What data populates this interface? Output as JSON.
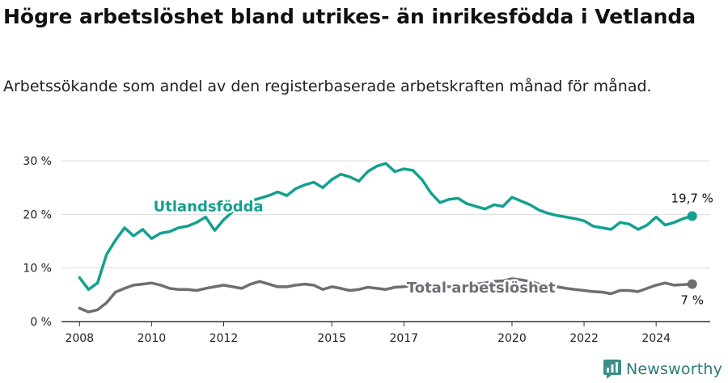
{
  "title": "Högre arbetslöshet bland utrikes- än inrikesfödda i Vetlanda",
  "subtitle": "Arbetssökande som andel av den registerbaserade arbetskraften månad för månad.",
  "brand": {
    "name": "Newsworthy",
    "icon": "newsworthy-logo-icon",
    "color": "#3a8f88"
  },
  "colors": {
    "foreign_born": "#13a091",
    "total": "#6e6e73",
    "grid": "#dcdcdc",
    "axis": "#333333"
  },
  "chart_data": {
    "type": "line",
    "xlabel": "",
    "ylabel": "",
    "xlim": [
      2007.5,
      2025.5
    ],
    "ylim": [
      0,
      30
    ],
    "x_ticks": [
      2008,
      2010,
      2012,
      2015,
      2017,
      2020,
      2022,
      2024
    ],
    "x_tick_labels": [
      "2008",
      "2010",
      "2012",
      "2015",
      "2017",
      "2020",
      "2022",
      "2024"
    ],
    "y_ticks": [
      0,
      10,
      20,
      30
    ],
    "y_tick_labels": [
      "0 %",
      "10 %",
      "20 %",
      "30 %"
    ],
    "grid": "horizontal",
    "legend": "inline",
    "series": [
      {
        "name": "Utlandsfödda",
        "end_label": "19,7 %",
        "x": [
          2008.0,
          2008.25,
          2008.5,
          2008.75,
          2009.0,
          2009.25,
          2009.5,
          2009.75,
          2010.0,
          2010.25,
          2010.5,
          2010.75,
          2011.0,
          2011.25,
          2011.5,
          2011.75,
          2012.0,
          2012.25,
          2012.5,
          2012.75,
          2013.0,
          2013.25,
          2013.5,
          2013.75,
          2014.0,
          2014.25,
          2014.5,
          2014.75,
          2015.0,
          2015.25,
          2015.5,
          2015.75,
          2016.0,
          2016.25,
          2016.5,
          2016.75,
          2017.0,
          2017.25,
          2017.5,
          2017.75,
          2018.0,
          2018.25,
          2018.5,
          2018.75,
          2019.0,
          2019.25,
          2019.5,
          2019.75,
          2020.0,
          2020.25,
          2020.5,
          2020.75,
          2021.0,
          2021.25,
          2021.5,
          2021.75,
          2022.0,
          2022.25,
          2022.5,
          2022.75,
          2023.0,
          2023.25,
          2023.5,
          2023.75,
          2024.0,
          2024.25,
          2024.5,
          2024.75,
          2025.0
        ],
        "y": [
          8.2,
          6.0,
          7.2,
          12.5,
          15.2,
          17.5,
          16.0,
          17.2,
          15.5,
          16.5,
          16.8,
          17.5,
          17.8,
          18.5,
          19.5,
          17.0,
          19.0,
          20.5,
          21.5,
          22.5,
          23.0,
          23.5,
          24.2,
          23.5,
          24.8,
          25.5,
          26.0,
          25.0,
          26.5,
          27.5,
          27.0,
          26.2,
          28.0,
          29.0,
          29.5,
          28.0,
          28.5,
          28.2,
          26.5,
          24.0,
          22.2,
          22.8,
          23.0,
          22.0,
          21.5,
          21.0,
          21.8,
          21.5,
          23.2,
          22.5,
          21.8,
          20.8,
          20.2,
          19.8,
          19.5,
          19.2,
          18.8,
          17.8,
          17.5,
          17.2,
          18.5,
          18.2,
          17.2,
          18.0,
          19.5,
          18.0,
          18.5,
          19.2,
          19.7
        ]
      },
      {
        "name": "Total arbetslöshet",
        "end_label": "7 %",
        "x": [
          2008.0,
          2008.25,
          2008.5,
          2008.75,
          2009.0,
          2009.25,
          2009.5,
          2009.75,
          2010.0,
          2010.25,
          2010.5,
          2010.75,
          2011.0,
          2011.25,
          2011.5,
          2011.75,
          2012.0,
          2012.25,
          2012.5,
          2012.75,
          2013.0,
          2013.25,
          2013.5,
          2013.75,
          2014.0,
          2014.25,
          2014.5,
          2014.75,
          2015.0,
          2015.25,
          2015.5,
          2015.75,
          2016.0,
          2016.25,
          2016.5,
          2016.75,
          2017.0,
          2017.25,
          2017.5,
          2017.75,
          2018.0,
          2018.25,
          2018.5,
          2018.75,
          2019.0,
          2019.25,
          2019.5,
          2019.75,
          2020.0,
          2020.25,
          2020.5,
          2020.75,
          2021.0,
          2021.25,
          2021.5,
          2021.75,
          2022.0,
          2022.25,
          2022.5,
          2022.75,
          2023.0,
          2023.25,
          2023.5,
          2023.75,
          2024.0,
          2024.25,
          2024.5,
          2024.75,
          2025.0
        ],
        "y": [
          2.5,
          1.8,
          2.2,
          3.5,
          5.5,
          6.2,
          6.8,
          7.0,
          7.2,
          6.8,
          6.2,
          6.0,
          6.0,
          5.8,
          6.2,
          6.5,
          6.8,
          6.5,
          6.2,
          7.0,
          7.5,
          7.0,
          6.5,
          6.5,
          6.8,
          7.0,
          6.8,
          6.0,
          6.5,
          6.2,
          5.8,
          6.0,
          6.4,
          6.2,
          6.0,
          6.4,
          6.5,
          6.8,
          6.6,
          6.5,
          6.8,
          6.5,
          6.6,
          6.8,
          7.0,
          7.2,
          7.5,
          7.6,
          8.0,
          7.8,
          7.5,
          7.0,
          6.8,
          6.5,
          6.2,
          6.0,
          5.8,
          5.6,
          5.5,
          5.2,
          5.8,
          5.8,
          5.6,
          6.2,
          6.8,
          7.2,
          6.8,
          6.9,
          7.0
        ]
      }
    ]
  }
}
